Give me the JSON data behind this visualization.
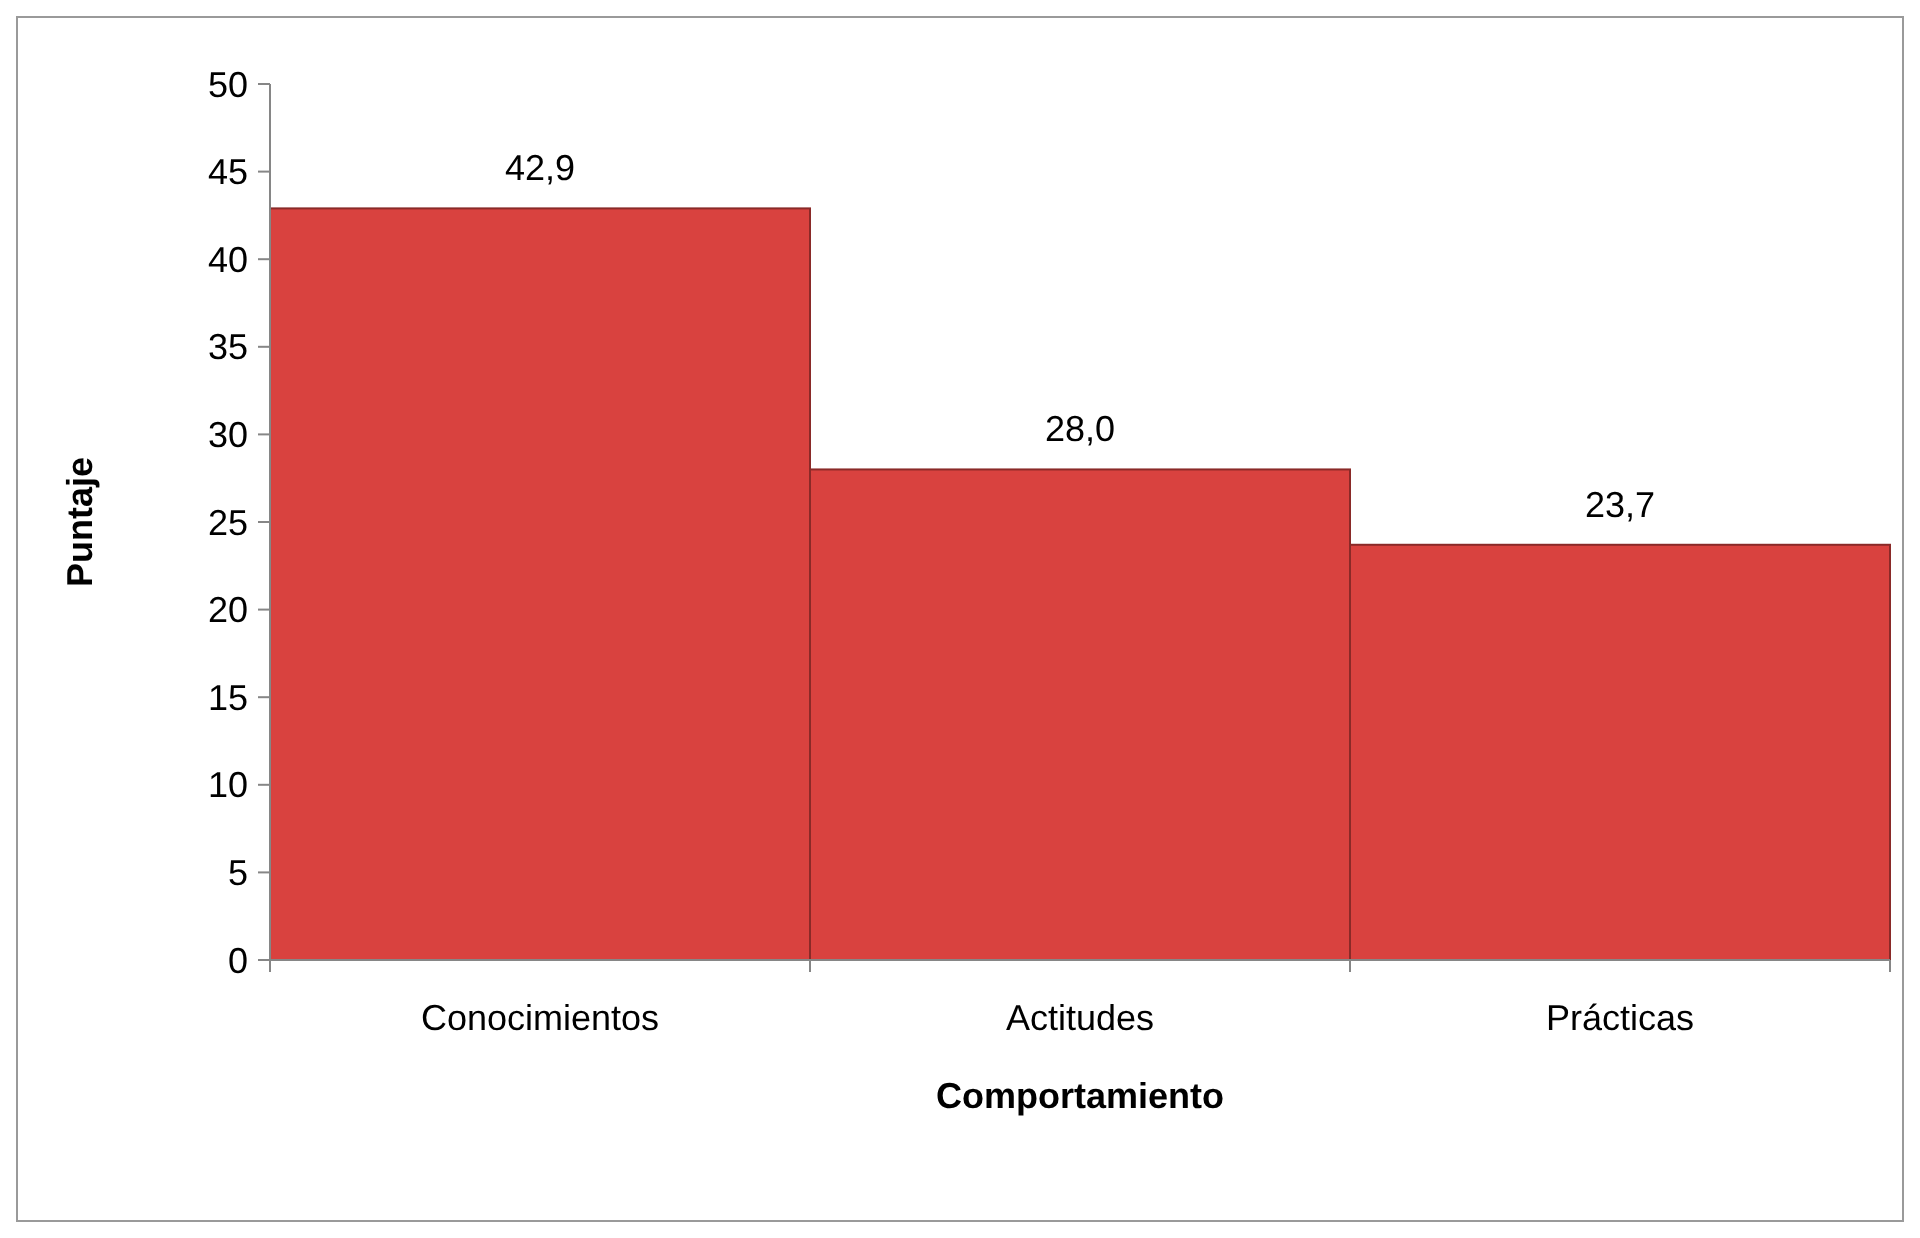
{
  "chart_data": {
    "type": "bar",
    "xlabel": "Comportamiento",
    "ylabel": "Puntaje",
    "categories": [
      "Conocimientos",
      "Actitudes",
      "Prácticas"
    ],
    "values": [
      42.9,
      28.0,
      23.7
    ],
    "value_labels": [
      "42,9",
      "28,0",
      "23,7"
    ],
    "color": "#d9423f",
    "ylim": [
      0,
      50
    ],
    "yticks": [
      0,
      5,
      10,
      15,
      20,
      25,
      30,
      35,
      40,
      45,
      50
    ]
  }
}
